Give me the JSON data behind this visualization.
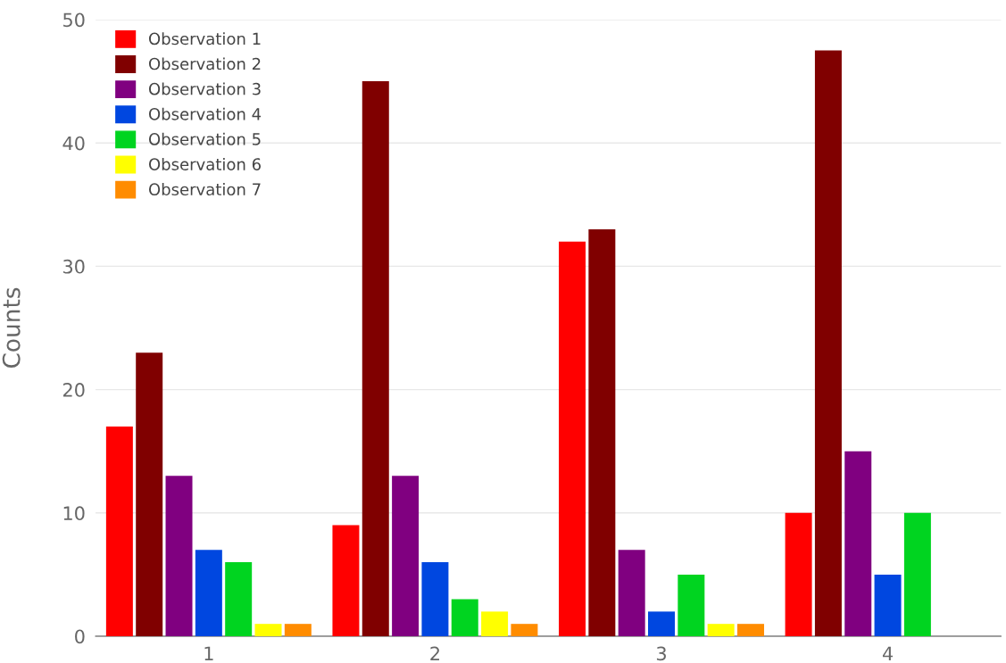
{
  "chart_data": {
    "type": "bar",
    "ylabel": "Counts",
    "categories": [
      "1",
      "2",
      "3",
      "4"
    ],
    "series": [
      {
        "name": "Observation 1",
        "color": "#ff0000",
        "values": [
          17,
          9,
          32,
          10
        ]
      },
      {
        "name": "Observation 2",
        "color": "#800000",
        "values": [
          23,
          45,
          33,
          47.5
        ]
      },
      {
        "name": "Observation 3",
        "color": "#800080",
        "values": [
          13,
          13,
          7,
          15
        ]
      },
      {
        "name": "Observation 4",
        "color": "#0047e0",
        "values": [
          7,
          6,
          2,
          5
        ]
      },
      {
        "name": "Observation 5",
        "color": "#00d420",
        "values": [
          6,
          3,
          5,
          10
        ]
      },
      {
        "name": "Observation 6",
        "color": "#ffff00",
        "values": [
          1,
          2,
          1,
          null
        ]
      },
      {
        "name": "Observation 7",
        "color": "#ff8c00",
        "values": [
          1,
          1,
          1,
          null
        ]
      }
    ],
    "ylim": [
      0,
      50
    ],
    "yticks": [
      0,
      10,
      20,
      30,
      40,
      50
    ],
    "grid": "y",
    "legend": "top left"
  }
}
